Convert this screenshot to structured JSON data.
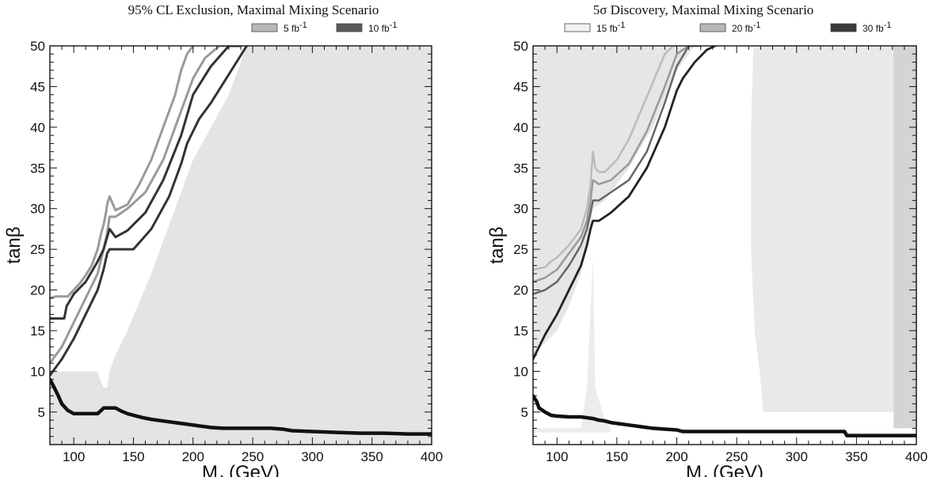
{
  "chart_data": [
    {
      "type": "line",
      "title": "95% CL Exclusion, Maximal Mixing Scenario",
      "xlabel": "M",
      "xlabel_sub": "A",
      "xlabel_unit": "(GeV)",
      "ylabel": "tanβ",
      "xlim": [
        80,
        400
      ],
      "ylim": [
        1,
        50
      ],
      "x_ticks": [
        100,
        150,
        200,
        250,
        300,
        350,
        400
      ],
      "y_ticks": [
        5,
        10,
        15,
        20,
        25,
        30,
        35,
        40,
        45,
        50
      ],
      "grid": false,
      "legend_position": "top-right, above plot",
      "legend": [
        {
          "label": "5 fb",
          "sup": "-1",
          "color": "#b8b8b8"
        },
        {
          "label": "10 fb",
          "sup": "-1",
          "color": "#5a5a5a"
        }
      ],
      "shaded_regions": [
        {
          "color": "#e4e4e4",
          "x": [
            80,
            120,
            122,
            125,
            128,
            130,
            135,
            145,
            165,
            200,
            230,
            245,
            400,
            400,
            80
          ],
          "y": [
            10,
            10,
            9,
            8,
            8,
            10,
            12,
            15,
            22,
            36,
            44,
            50,
            50,
            1,
            1
          ]
        }
      ],
      "series": [
        {
          "color": "#111111",
          "width": 4.5,
          "x": [
            80,
            83,
            87,
            90,
            95,
            100,
            120,
            123,
            125,
            135,
            140,
            145,
            150,
            158,
            165,
            175,
            185,
            195,
            205,
            215,
            225,
            235,
            245,
            255,
            265,
            275,
            283,
            300,
            320,
            340,
            360,
            380,
            400
          ],
          "y": [
            9,
            8.2,
            7,
            6,
            5.2,
            4.8,
            4.8,
            5.2,
            5.5,
            5.5,
            5.1,
            4.8,
            4.6,
            4.3,
            4.1,
            3.9,
            3.7,
            3.5,
            3.3,
            3.1,
            3,
            3,
            3,
            3,
            3,
            2.9,
            2.7,
            2.6,
            2.5,
            2.4,
            2.4,
            2.3,
            2.3
          ]
        },
        {
          "color": "#9a9a9a",
          "width": 3,
          "x": [
            80,
            85,
            95,
            100,
            105,
            110,
            115,
            120,
            123,
            125,
            127,
            128,
            130,
            135,
            145,
            155,
            165,
            175,
            185,
            190,
            195,
            200
          ],
          "y": [
            19,
            19.2,
            19.2,
            20,
            20.8,
            21.8,
            23,
            25,
            27,
            28,
            29.5,
            30.5,
            31.5,
            29.8,
            30.5,
            33,
            36,
            40,
            44,
            47,
            49,
            50
          ]
        },
        {
          "color": "#9a9a9a",
          "width": 3,
          "x": [
            80,
            90,
            100,
            110,
            120,
            125,
            128,
            130,
            135,
            145,
            160,
            175,
            190,
            200,
            210,
            222,
            230
          ],
          "y": [
            11,
            13,
            16,
            19,
            22,
            25,
            27,
            29,
            29,
            30,
            32,
            36,
            42,
            46,
            48.5,
            50,
            50
          ]
        },
        {
          "color": "#333333",
          "width": 3,
          "x": [
            80,
            84,
            92,
            94,
            100,
            110,
            120,
            125,
            128,
            130,
            135,
            145,
            160,
            175,
            190,
            200,
            215,
            230,
            240
          ],
          "y": [
            16.5,
            16.5,
            16.5,
            18,
            19.5,
            21,
            23.5,
            25,
            26.5,
            27.5,
            26.5,
            27.3,
            29.5,
            33.5,
            39,
            44,
            47.5,
            50,
            50
          ]
        },
        {
          "color": "#333333",
          "width": 3,
          "x": [
            80,
            90,
            100,
            110,
            120,
            125,
            128,
            130,
            150,
            165,
            180,
            190,
            195,
            200,
            205,
            215,
            230,
            245
          ],
          "y": [
            9.5,
            11.5,
            14,
            17,
            20,
            22.5,
            24.5,
            25,
            25,
            27.5,
            31.5,
            35.5,
            38,
            39.5,
            41,
            43,
            46.5,
            50
          ]
        }
      ]
    },
    {
      "type": "line",
      "title": "5σ Discovery, Maximal Mixing Scenario",
      "xlabel": "M",
      "xlabel_sub": "A",
      "xlabel_unit": "(GeV)",
      "ylabel": "tanβ",
      "xlim": [
        80,
        400
      ],
      "ylim": [
        1,
        50
      ],
      "x_ticks": [
        100,
        150,
        200,
        250,
        300,
        350,
        400
      ],
      "y_ticks": [
        5,
        10,
        15,
        20,
        25,
        30,
        35,
        40,
        45,
        50
      ],
      "grid": false,
      "legend_position": "top, above plot",
      "legend": [
        {
          "label": "15 fb",
          "sup": "-1",
          "color": "#f1f1f1"
        },
        {
          "label": "20 fb",
          "sup": "-1",
          "color": "#b8b8b8"
        },
        {
          "label": "30 fb",
          "sup": "-1",
          "color": "#3a3a3a"
        }
      ],
      "shaded_regions": [
        {
          "color": "#e6e6e6",
          "x": [
            80,
            100,
            110,
            120,
            125,
            128,
            130,
            140,
            160,
            180,
            200,
            215,
            230,
            240,
            80
          ],
          "y": [
            12,
            15,
            18,
            22,
            25,
            27,
            30,
            31,
            35,
            40,
            47,
            50,
            50,
            50,
            50
          ]
        },
        {
          "color": "#e9e9e9",
          "x": [
            264,
            262,
            262,
            265,
            270,
            272,
            400,
            400
          ],
          "y": [
            50,
            40,
            25,
            15,
            9,
            5,
            5,
            50
          ]
        },
        {
          "color": "#d4d4d4",
          "x": [
            381,
            400,
            400,
            381
          ],
          "y": [
            50,
            50,
            3,
            3
          ]
        },
        {
          "color": "#ececec",
          "x": [
            80,
            120,
            125,
            130,
            132,
            140,
            145,
            145,
            80
          ],
          "y": [
            3,
            3,
            8,
            24,
            8,
            4,
            3,
            2.5,
            2.5
          ]
        }
      ],
      "series": [
        {
          "color": "#111111",
          "width": 4.5,
          "x": [
            80,
            83,
            85,
            90,
            95,
            100,
            110,
            120,
            125,
            130,
            135,
            140,
            145,
            150,
            160,
            170,
            180,
            190,
            200,
            205,
            210,
            240,
            280,
            300,
            320,
            340,
            342,
            360,
            380,
            400
          ],
          "y": [
            7,
            6.3,
            5.5,
            5,
            4.6,
            4.5,
            4.4,
            4.4,
            4.3,
            4.2,
            4.0,
            3.9,
            3.7,
            3.6,
            3.4,
            3.2,
            3.0,
            2.9,
            2.8,
            2.6,
            2.6,
            2.6,
            2.6,
            2.6,
            2.6,
            2.6,
            2.1,
            2.1,
            2.1,
            2.1
          ]
        },
        {
          "color": "#bbbbbb",
          "width": 2.5,
          "x": [
            80,
            90,
            95,
            100,
            110,
            120,
            125,
            128,
            130,
            132,
            135,
            140,
            150,
            160,
            170,
            180,
            190,
            197,
            200
          ],
          "y": [
            22.5,
            22.8,
            23.5,
            24,
            25.5,
            27.5,
            30,
            33,
            37,
            35,
            34.5,
            34.5,
            36,
            38.5,
            42,
            45.5,
            49,
            50,
            50
          ]
        },
        {
          "color": "#999999",
          "width": 2.5,
          "x": [
            80,
            90,
            100,
            110,
            120,
            125,
            128,
            130,
            135,
            145,
            160,
            175,
            190,
            200,
            210,
            215
          ],
          "y": [
            21,
            21.5,
            22.5,
            24.5,
            26.5,
            28.5,
            31,
            33.5,
            33,
            33.5,
            35.5,
            39.5,
            45,
            49,
            50,
            50
          ]
        },
        {
          "color": "#666666",
          "width": 2.5,
          "x": [
            80,
            90,
            100,
            110,
            120,
            125,
            128,
            130,
            135,
            145,
            160,
            175,
            190,
            200,
            210,
            220
          ],
          "y": [
            19.5,
            20,
            21,
            23,
            25.5,
            27.5,
            29.5,
            31,
            31,
            32,
            33.5,
            37,
            43,
            47.5,
            50,
            50
          ]
        },
        {
          "color": "#222222",
          "width": 2.8,
          "x": [
            80,
            90,
            100,
            110,
            120,
            125,
            128,
            130,
            135,
            145,
            160,
            175,
            190,
            200,
            205,
            215,
            225,
            232
          ],
          "y": [
            11.5,
            14.5,
            17,
            20,
            23,
            25.5,
            27.5,
            28.5,
            28.5,
            29.5,
            31.5,
            35,
            40,
            44.5,
            46,
            48,
            49.5,
            50
          ]
        }
      ]
    }
  ]
}
